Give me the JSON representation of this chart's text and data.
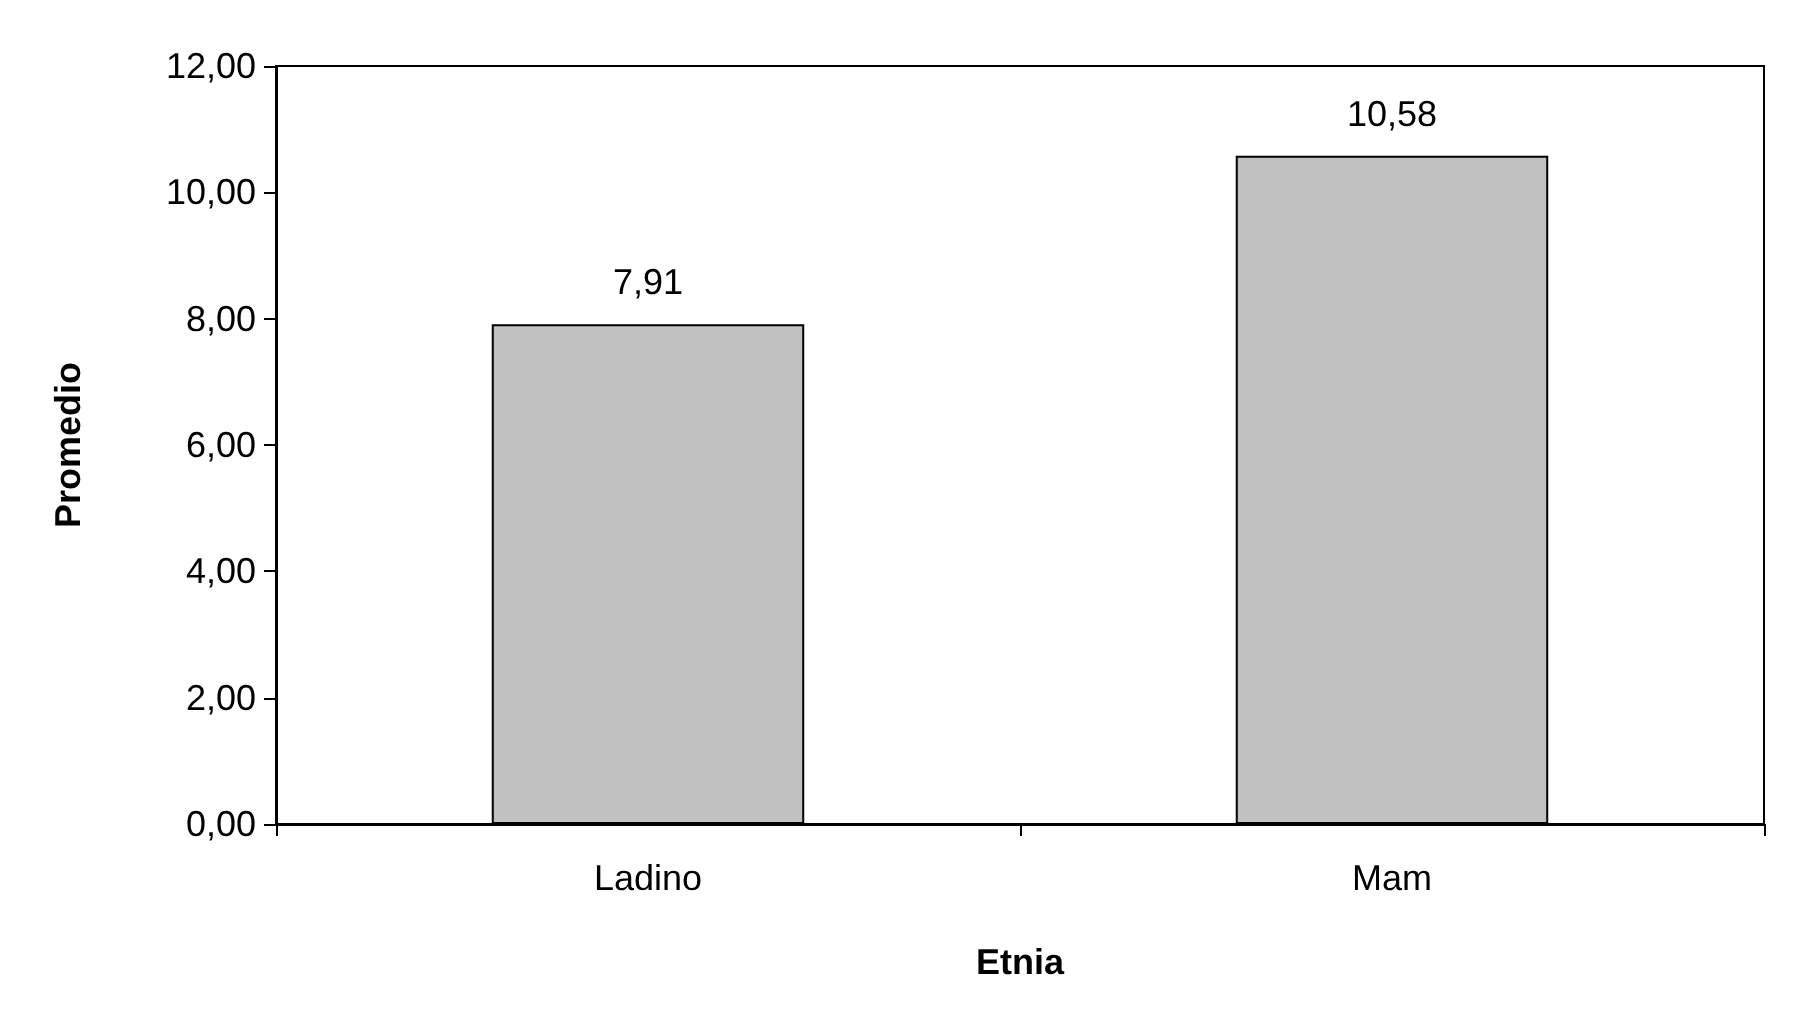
{
  "chart_data": {
    "type": "bar",
    "xlabel": "Etnia",
    "ylabel": "Promedio",
    "categories": [
      "Ladino",
      "Mam"
    ],
    "values": [
      7.91,
      10.58
    ],
    "color": "#c0c0c0",
    "value_labels": [
      "7,91",
      "10,58"
    ],
    "ylim": [
      0,
      12
    ],
    "yticks": [
      {
        "value": 0,
        "label": "0,00"
      },
      {
        "value": 2,
        "label": "2,00"
      },
      {
        "value": 4,
        "label": "4,00"
      },
      {
        "value": 6,
        "label": "6,00"
      },
      {
        "value": 8,
        "label": "8,00"
      },
      {
        "value": 10,
        "label": "10,00"
      },
      {
        "value": 12,
        "label": "12,00"
      }
    ]
  }
}
